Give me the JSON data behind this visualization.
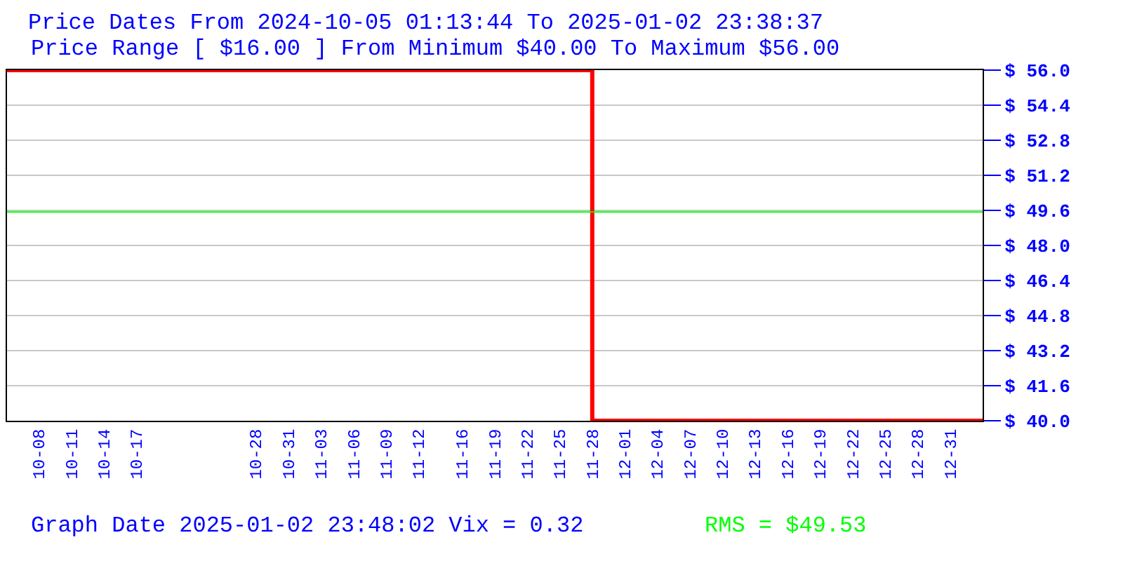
{
  "chart_data": {
    "type": "step",
    "title": "Price Dates From 2024-10-05 01:13:44 To 2025-01-02 23:38:37",
    "subtitle": "Price Range [ $16.00 ] From Minimum $40.00 To Maximum $56.00",
    "x": [
      "2024-10-05T01:13:44",
      "2024-11-28",
      "2025-01-02T23:38:37"
    ],
    "series": [
      {
        "color": "#ff0000",
        "values": [
          56,
          40,
          40
        ]
      }
    ],
    "xlim": [
      "2024-10-05T01:13:44",
      "2025-01-02T23:38:37"
    ],
    "xticks": [
      {
        "value": "2024-10-08",
        "label": "10-08"
      },
      {
        "value": "2024-10-11",
        "label": "10-11"
      },
      {
        "value": "2024-10-14",
        "label": "10-14"
      },
      {
        "value": "2024-10-17",
        "label": "10-17"
      },
      {
        "value": "2024-10-28",
        "label": "10-28"
      },
      {
        "value": "2024-10-31",
        "label": "10-31"
      },
      {
        "value": "2024-11-03",
        "label": "11-03"
      },
      {
        "value": "2024-11-06",
        "label": "11-06"
      },
      {
        "value": "2024-11-09",
        "label": "11-09"
      },
      {
        "value": "2024-11-12",
        "label": "11-12"
      },
      {
        "value": "2024-11-16",
        "label": "11-16"
      },
      {
        "value": "2024-11-19",
        "label": "11-19"
      },
      {
        "value": "2024-11-22",
        "label": "11-22"
      },
      {
        "value": "2024-11-25",
        "label": "11-25"
      },
      {
        "value": "2024-11-28",
        "label": "11-28"
      },
      {
        "value": "2024-12-01",
        "label": "12-01"
      },
      {
        "value": "2024-12-04",
        "label": "12-04"
      },
      {
        "value": "2024-12-07",
        "label": "12-07"
      },
      {
        "value": "2024-12-10",
        "label": "12-10"
      },
      {
        "value": "2024-12-13",
        "label": "12-13"
      },
      {
        "value": "2024-12-16",
        "label": "12-16"
      },
      {
        "value": "2024-12-19",
        "label": "12-19"
      },
      {
        "value": "2024-12-22",
        "label": "12-22"
      },
      {
        "value": "2024-12-25",
        "label": "12-25"
      },
      {
        "value": "2024-12-28",
        "label": "12-28"
      },
      {
        "value": "2024-12-31",
        "label": "12-31"
      }
    ],
    "ylim": [
      40,
      56
    ],
    "yticks": [
      {
        "value": 40,
        "label": "$ 40.0"
      },
      {
        "value": 41.6,
        "label": "$ 41.6"
      },
      {
        "value": 43.2,
        "label": "$ 43.2"
      },
      {
        "value": 44.8,
        "label": "$ 44.8"
      },
      {
        "value": 46.4,
        "label": "$ 46.4"
      },
      {
        "value": 48,
        "label": "$ 48.0"
      },
      {
        "value": 49.6,
        "label": "$ 49.6"
      },
      {
        "value": 51.2,
        "label": "$ 51.2"
      },
      {
        "value": 52.8,
        "label": "$ 52.8"
      },
      {
        "value": 54.4,
        "label": "$ 54.4"
      },
      {
        "value": 56,
        "label": "$ 56.0"
      }
    ],
    "ref_lines": [
      {
        "axis": "y",
        "value": 49.53,
        "label": "RMS = $49.53",
        "color": "#00ff00"
      }
    ],
    "annotations": [
      "Graph Date 2025-01-02 23:48:02 Vix = 0.32"
    ],
    "grid": "y",
    "marker": "none",
    "line_style": "solid"
  }
}
